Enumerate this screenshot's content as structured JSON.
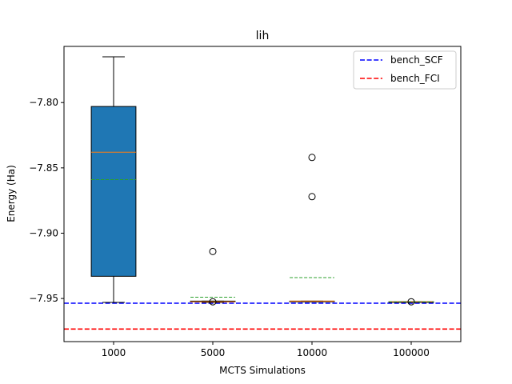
{
  "chart_data": {
    "type": "box",
    "title": "lih",
    "xlabel": "MCTS Simulations",
    "ylabel": "Energy (Ha)",
    "categories": [
      "1000",
      "5000",
      "10000",
      "100000"
    ],
    "ylim": [
      -7.983,
      -7.757
    ],
    "yticks": [
      -7.8,
      -7.85,
      -7.9,
      -7.95
    ],
    "ytick_labels": [
      "−7.80",
      "−7.85",
      "−7.90",
      "−7.95"
    ],
    "boxes": [
      {
        "category": "1000",
        "whisker_low": -7.953,
        "q1": -7.933,
        "median": -7.838,
        "mean": -7.859,
        "q3": -7.803,
        "whisker_high": -7.765,
        "fliers": []
      },
      {
        "category": "5000",
        "whisker_low": -7.953,
        "q1": -7.9525,
        "median": -7.9525,
        "mean": -7.949,
        "q3": -7.952,
        "whisker_high": -7.952,
        "fliers": [
          -7.914,
          -7.9525
        ]
      },
      {
        "category": "10000",
        "whisker_low": -7.9525,
        "q1": -7.9525,
        "median": -7.952,
        "mean": -7.934,
        "q3": -7.952,
        "whisker_high": -7.952,
        "fliers": [
          -7.842,
          -7.872
        ]
      },
      {
        "category": "100000",
        "whisker_low": -7.9525,
        "q1": -7.9525,
        "median": -7.9525,
        "mean": -7.9525,
        "q3": -7.9525,
        "whisker_high": -7.9525,
        "fliers": [
          -7.9525
        ]
      }
    ],
    "reference_lines": [
      {
        "name": "bench_SCF",
        "value": -7.9536,
        "color": "#0000ff"
      },
      {
        "name": "bench_FCI",
        "value": -7.9734,
        "color": "#ff0000"
      }
    ],
    "colors": {
      "box_fill": "#1f77b4",
      "median": "#ff7f0e",
      "mean": "#2ca02c"
    },
    "legend_position": "top-right",
    "grid": false
  }
}
